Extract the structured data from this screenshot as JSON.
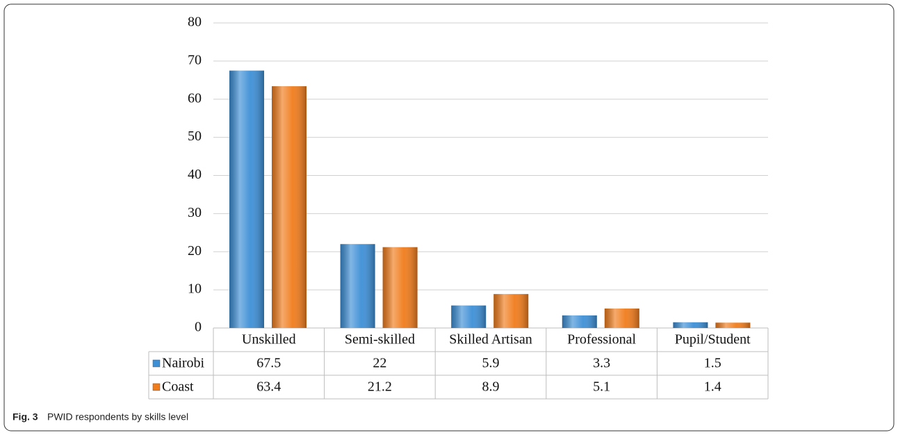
{
  "chart_data": {
    "type": "bar",
    "caption_label": "Fig. 3",
    "caption": "PWID respondents by skills level",
    "categories": [
      "Unskilled",
      "Semi-skilled",
      "Skilled Artisan",
      "Professional",
      "Pupil/Student"
    ],
    "series": [
      {
        "name": "Nairobi",
        "color": "#3d8fd6",
        "values": [
          67.5,
          22,
          5.9,
          3.3,
          1.5
        ]
      },
      {
        "name": "Coast",
        "color": "#f07c1c",
        "values": [
          63.4,
          21.2,
          8.9,
          5.1,
          1.4
        ]
      }
    ],
    "ylim": [
      0,
      80
    ],
    "yticks": [
      0,
      10,
      20,
      30,
      40,
      50,
      60,
      70,
      80
    ],
    "grid": true
  }
}
